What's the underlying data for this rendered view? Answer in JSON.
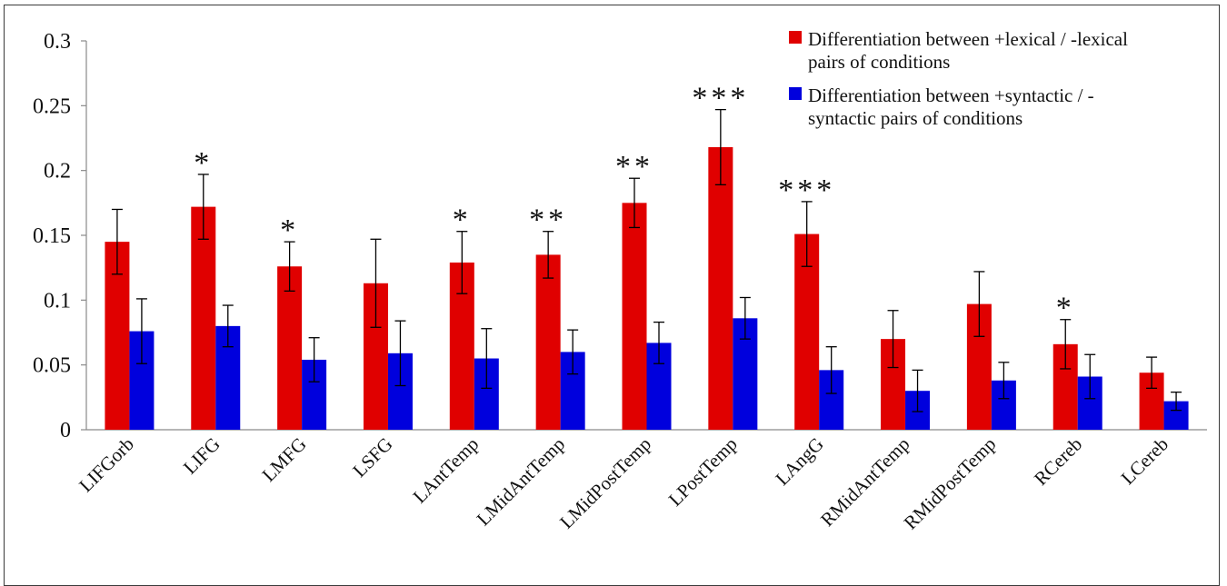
{
  "chart_data": {
    "type": "bar",
    "title": "",
    "xlabel": "",
    "ylabel": "",
    "ylim": [
      0,
      0.3
    ],
    "yticks": [
      "0",
      "0.05",
      "0.1",
      "0.15",
      "0.2",
      "0.25",
      "0.3"
    ],
    "grid": false,
    "legend_position": "top-right",
    "categories": [
      "LIFGorb",
      "LIFG",
      "LMFG",
      "LSFG",
      "LAntTemp",
      "LMidAntTemp",
      "LMidPostTemp",
      "LPostTemp",
      "LAngG",
      "RMidAntTemp",
      "RMidPostTemp",
      "RCereb",
      "LCereb"
    ],
    "series": [
      {
        "name_lines": [
          "Differentiation between +lexical / -lexical",
          "pairs of conditions"
        ],
        "color": "#e00000",
        "values": [
          0.145,
          0.172,
          0.126,
          0.113,
          0.129,
          0.135,
          0.175,
          0.218,
          0.151,
          0.07,
          0.097,
          0.066,
          0.044
        ],
        "errors": [
          0.025,
          0.025,
          0.019,
          0.034,
          0.024,
          0.018,
          0.019,
          0.029,
          0.025,
          0.022,
          0.025,
          0.019,
          0.012
        ]
      },
      {
        "name_lines": [
          "Differentiation between +syntactic / -",
          "syntactic pairs of conditions"
        ],
        "color": "#0000dd",
        "values": [
          0.076,
          0.08,
          0.054,
          0.059,
          0.055,
          0.06,
          0.067,
          0.086,
          0.046,
          0.03,
          0.038,
          0.041,
          0.022
        ],
        "errors": [
          0.025,
          0.016,
          0.017,
          0.025,
          0.023,
          0.017,
          0.016,
          0.016,
          0.018,
          0.016,
          0.014,
          0.017,
          0.007
        ]
      }
    ],
    "annotations": [
      "",
      "*",
      "*",
      "",
      "*",
      "**",
      "**",
      "***",
      "***",
      "",
      "",
      "*",
      ""
    ]
  }
}
